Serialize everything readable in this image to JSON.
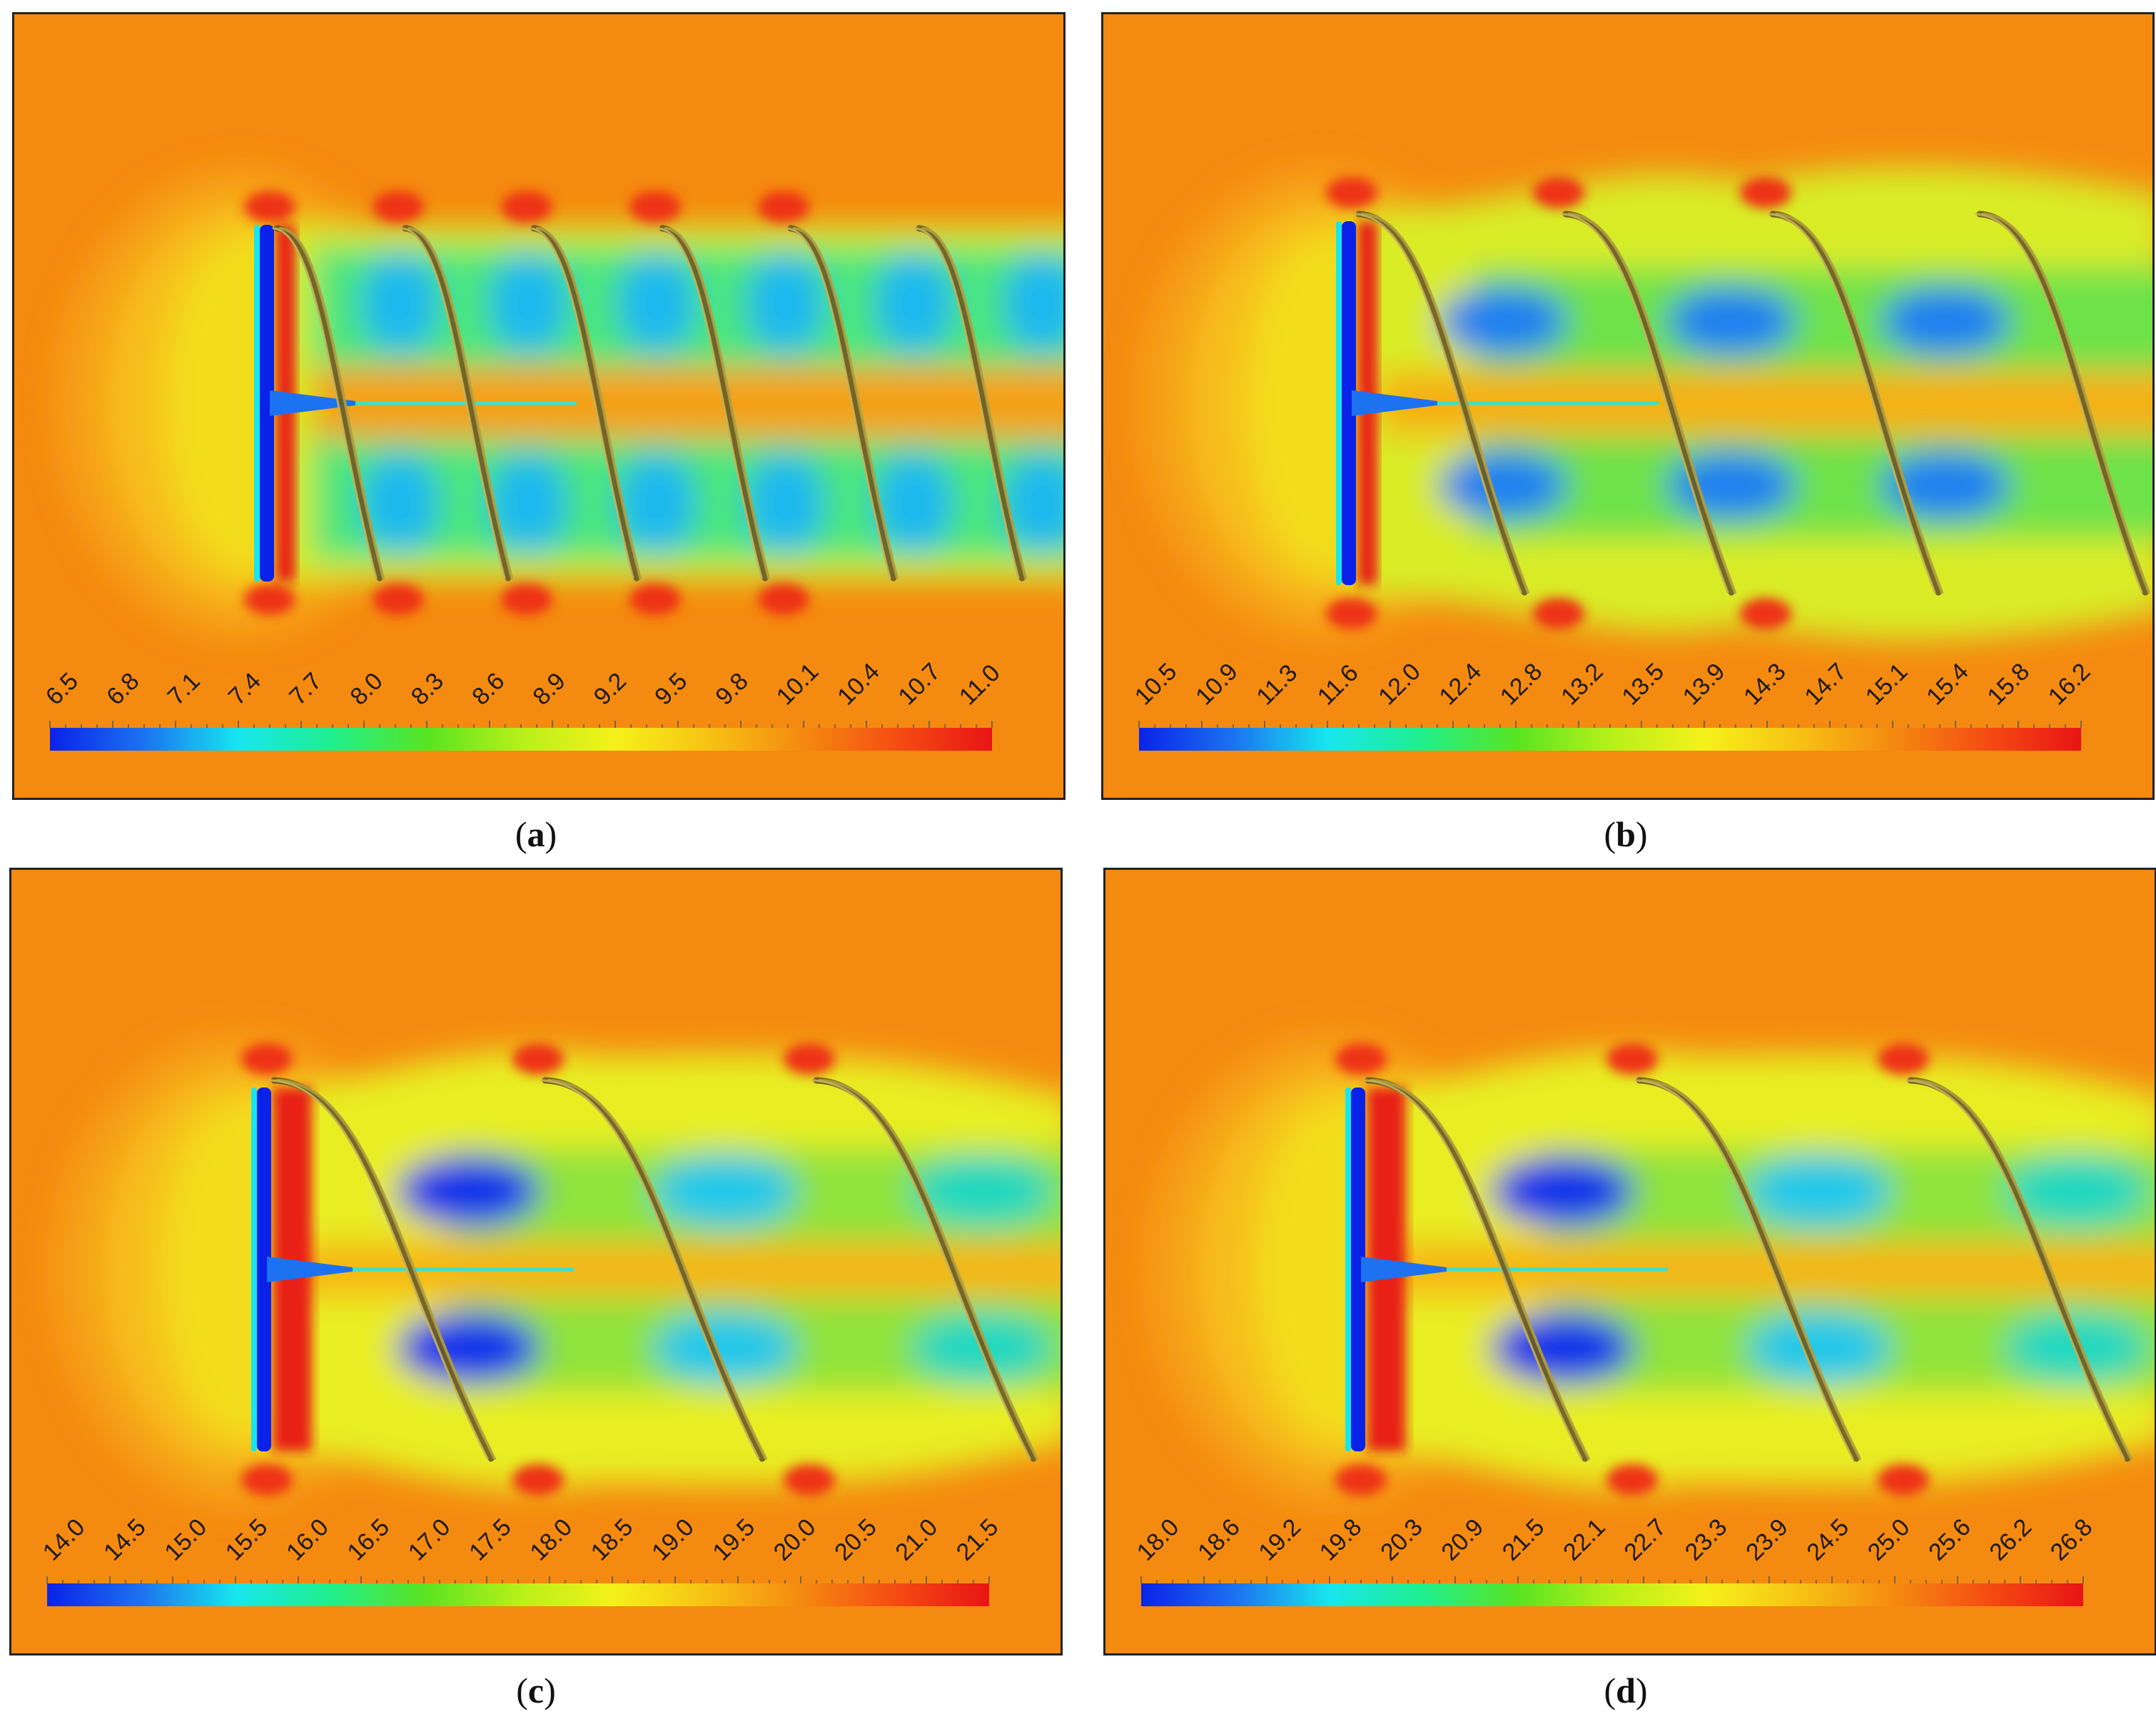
{
  "panels": [
    {
      "id": "a",
      "caption": "a",
      "colorbar_ticks": [
        "6.5",
        "6.8",
        "7.1",
        "7.4",
        "7.7",
        "8.0",
        "8.3",
        "8.6",
        "8.9",
        "9.2",
        "9.5",
        "9.8",
        "10.1",
        "10.4",
        "10.7",
        "11.0"
      ],
      "wake": "tight",
      "blades": 6
    },
    {
      "id": "b",
      "caption": "b",
      "colorbar_ticks": [
        "10.5",
        "10.9",
        "11.3",
        "11.6",
        "12.0",
        "12.4",
        "12.8",
        "13.2",
        "13.5",
        "13.9",
        "14.3",
        "14.7",
        "15.1",
        "15.4",
        "15.8",
        "16.2"
      ],
      "wake": "medium",
      "blades": 4
    },
    {
      "id": "c",
      "caption": "c",
      "colorbar_ticks": [
        "14.0",
        "14.5",
        "15.0",
        "15.5",
        "16.0",
        "16.5",
        "17.0",
        "17.5",
        "18.0",
        "18.5",
        "19.0",
        "19.5",
        "20.0",
        "20.5",
        "21.0",
        "21.5"
      ],
      "wake": "wide",
      "blades": 3
    },
    {
      "id": "d",
      "caption": "d",
      "colorbar_ticks": [
        "18.0",
        "18.6",
        "19.2",
        "19.8",
        "20.3",
        "20.9",
        "21.5",
        "22.1",
        "22.7",
        "23.3",
        "23.9",
        "24.5",
        "25.0",
        "25.6",
        "26.2",
        "26.8"
      ],
      "wake": "wide",
      "blades": 3
    }
  ],
  "colormap": [
    "#0a22e8",
    "#1c72f0",
    "#17e6ef",
    "#1fef8b",
    "#58e421",
    "#b7f019",
    "#f5f11a",
    "#f7c214",
    "#f58a10",
    "#f54c12",
    "#e81414"
  ],
  "colors": {
    "background": "#f58a10",
    "near_field": "#f7a51a",
    "rotor_low": "#0a22e8",
    "rotor_high": "#e81414",
    "vortex": "#8a7a2a"
  }
}
